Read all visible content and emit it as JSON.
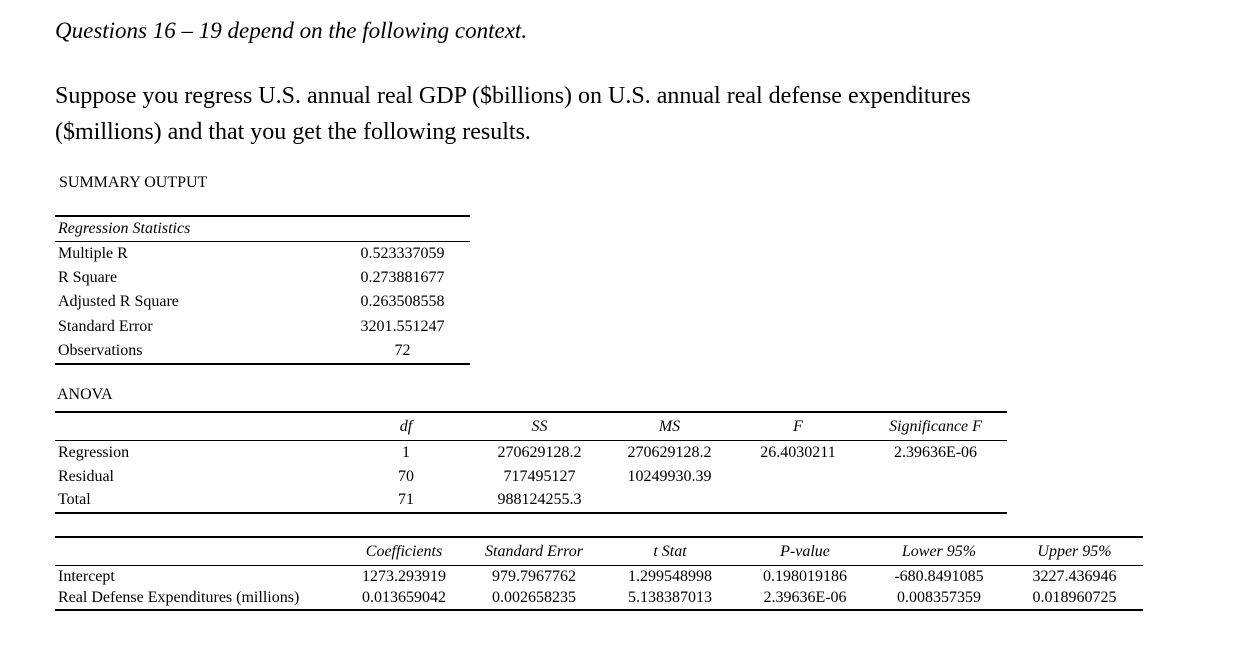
{
  "page": {
    "context_note": "Questions 16 – 19 depend on the following context.",
    "intro_line1": "Suppose you regress U.S. annual real GDP ($billions) on U.S. annual real defense expenditures",
    "intro_line2": "($millions) and that you get the following results."
  },
  "summary": {
    "title": "SUMMARY OUTPUT",
    "regression_statistics": {
      "title": "Regression Statistics",
      "rows": [
        {
          "label": "Multiple R",
          "value": "0.523337059"
        },
        {
          "label": "R Square",
          "value": "0.273881677"
        },
        {
          "label": "Adjusted R Square",
          "value": "0.263508558"
        },
        {
          "label": "Standard Error",
          "value": "3201.551247"
        },
        {
          "label": "Observations",
          "value": "72"
        }
      ]
    },
    "anova": {
      "title": "ANOVA",
      "headers": [
        "df",
        "SS",
        "MS",
        "F",
        "Significance F"
      ],
      "rows": [
        {
          "label": "Regression",
          "df": "1",
          "ss": "270629128.2",
          "ms": "270629128.2",
          "f": "26.4030211",
          "sig_f": "2.39636E-06"
        },
        {
          "label": "Residual",
          "df": "70",
          "ss": "717495127",
          "ms": "10249930.39",
          "f": "",
          "sig_f": ""
        },
        {
          "label": "Total",
          "df": "71",
          "ss": "988124255.3",
          "ms": "",
          "f": "",
          "sig_f": ""
        }
      ]
    },
    "coefficients_table": {
      "headers": [
        "Coefficients",
        "Standard Error",
        "t Stat",
        "P-value",
        "Lower 95%",
        "Upper 95%"
      ],
      "rows": [
        {
          "label": "Intercept",
          "coefficient": "1273.293919",
          "standard_error": "979.7967762",
          "t_stat": "1.299548998",
          "p_value": "0.198019186",
          "lower_95": "-680.8491085",
          "upper_95": "3227.436946"
        },
        {
          "label": "Real Defense Expenditures (millions)",
          "coefficient": "0.013659042",
          "standard_error": "0.002658235",
          "t_stat": "5.138387013",
          "p_value": "2.39636E-06",
          "lower_95": "0.008357359",
          "upper_95": "0.018960725"
        }
      ]
    }
  }
}
